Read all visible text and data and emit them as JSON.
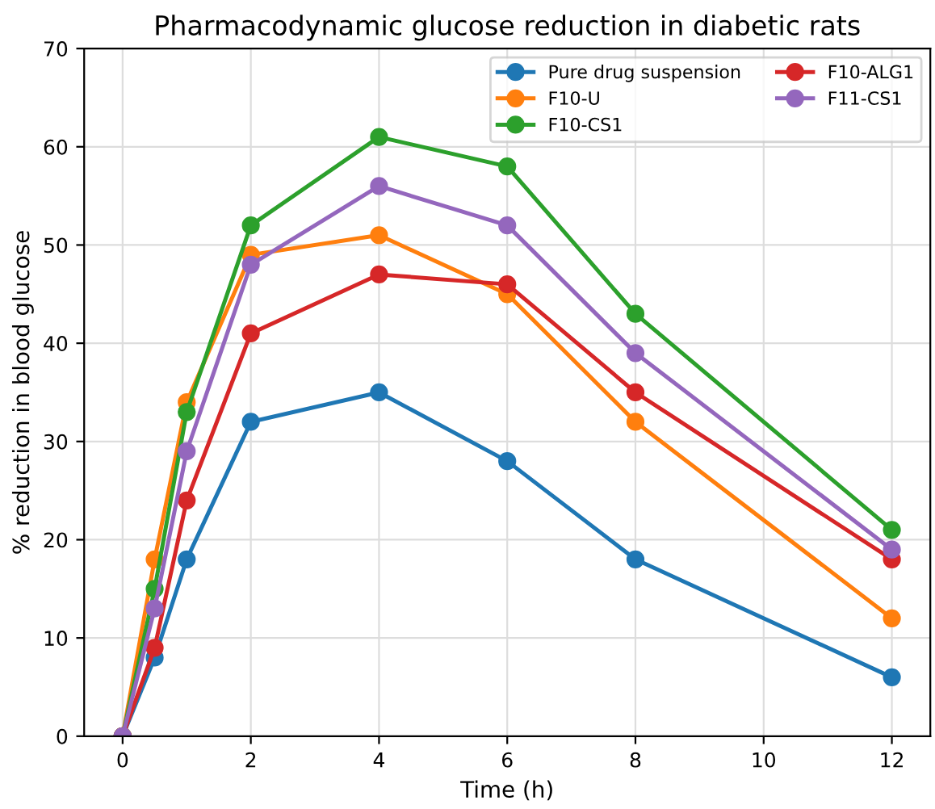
{
  "chart_data": {
    "type": "line",
    "title": "Pharmacodynamic glucose reduction in diabetic rats",
    "xlabel": "Time (h)",
    "ylabel": "% reduction in blood glucose",
    "x": [
      0,
      0.5,
      1,
      2,
      4,
      6,
      8,
      12
    ],
    "series": [
      {
        "name": "Pure drug suspension",
        "color": "#1f77b4",
        "values": [
          0,
          8,
          18,
          32,
          35,
          28,
          18,
          6
        ]
      },
      {
        "name": "F10-U",
        "color": "#ff7f0e",
        "values": [
          0,
          18,
          34,
          49,
          51,
          45,
          32,
          12
        ]
      },
      {
        "name": "F10-CS1",
        "color": "#2ca02c",
        "values": [
          0,
          15,
          33,
          52,
          61,
          58,
          43,
          21
        ]
      },
      {
        "name": "F10-ALG1",
        "color": "#d62728",
        "values": [
          0,
          9,
          24,
          41,
          47,
          46,
          35,
          18
        ]
      },
      {
        "name": "F11-CS1",
        "color": "#9467bd",
        "values": [
          0,
          13,
          29,
          48,
          56,
          52,
          39,
          19
        ]
      }
    ],
    "xlim": [
      -0.6,
      12.6
    ],
    "xticks": [
      0,
      2,
      4,
      6,
      8,
      10,
      12
    ],
    "ylim": [
      0,
      70
    ],
    "yticks": [
      0,
      10,
      20,
      30,
      40,
      50,
      60,
      70
    ],
    "grid": true,
    "legend": "top right",
    "marker": "circle",
    "line_style": "solid"
  }
}
